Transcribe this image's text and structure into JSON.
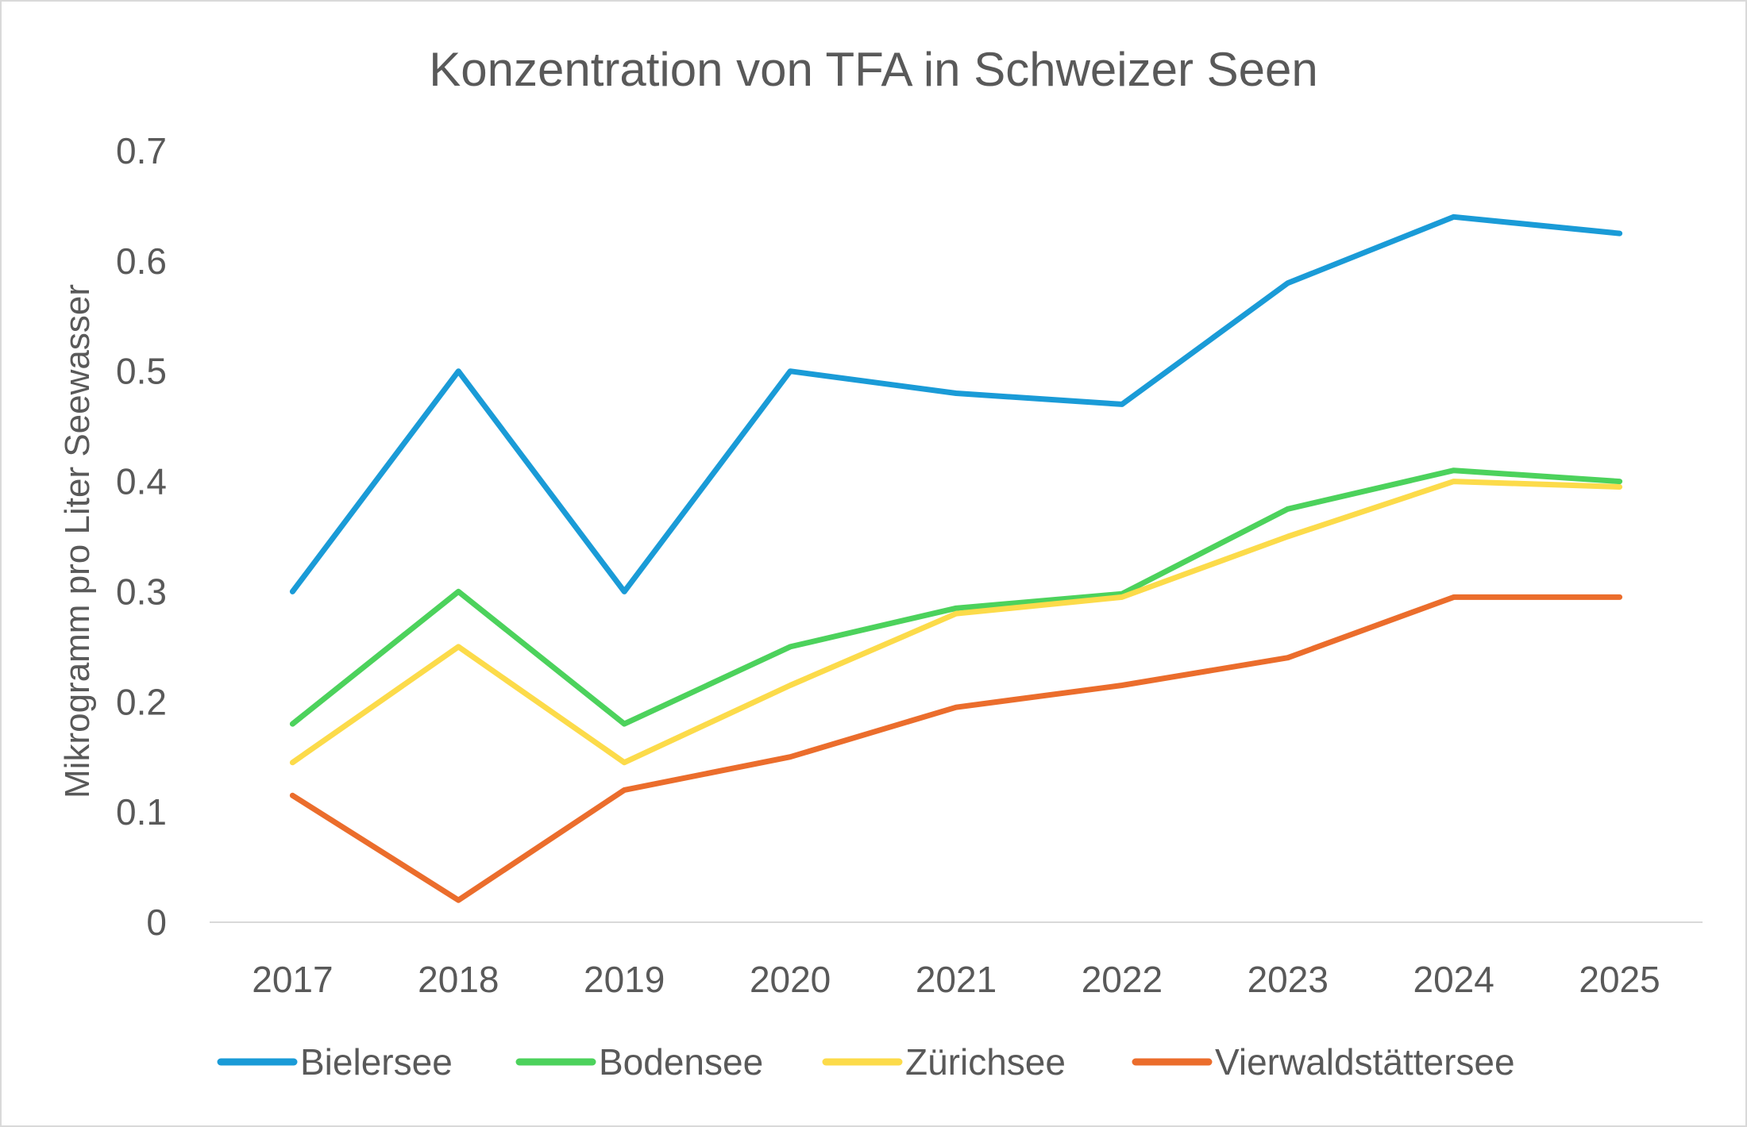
{
  "chart_data": {
    "type": "line",
    "title": "Konzentration von TFA in Schweizer Seen",
    "xlabel": "",
    "ylabel": "Mikrogramm pro Liter Seewasser",
    "categories": [
      "2017",
      "2018",
      "2019",
      "2020",
      "2021",
      "2022",
      "2023",
      "2024",
      "2025"
    ],
    "ylim": [
      0,
      0.7
    ],
    "yticks": [
      0,
      0.1,
      0.2,
      0.3,
      0.4,
      0.5,
      0.6,
      0.7
    ],
    "ytick_labels": [
      "0",
      "0.1",
      "0.2",
      "0.3",
      "0.4",
      "0.5",
      "0.6",
      "0.7"
    ],
    "grid": false,
    "legend_position": "bottom",
    "series": [
      {
        "name": "Bielersee",
        "color": "#1a9bd7",
        "values": [
          0.3,
          0.5,
          0.3,
          0.5,
          0.48,
          0.47,
          0.58,
          0.64,
          0.625
        ]
      },
      {
        "name": "Bodensee",
        "color": "#4cd25c",
        "values": [
          0.18,
          0.3,
          0.18,
          0.25,
          0.285,
          0.298,
          0.375,
          0.41,
          0.4
        ]
      },
      {
        "name": "Zürichsee",
        "color": "#fcdb4a",
        "values": [
          0.145,
          0.25,
          0.145,
          0.215,
          0.28,
          0.295,
          0.35,
          0.4,
          0.395
        ]
      },
      {
        "name": "Vierwaldstättersee",
        "color": "#eb6d2c",
        "values": [
          0.115,
          0.02,
          0.12,
          0.15,
          0.195,
          0.215,
          0.24,
          0.295,
          0.295
        ]
      }
    ]
  }
}
